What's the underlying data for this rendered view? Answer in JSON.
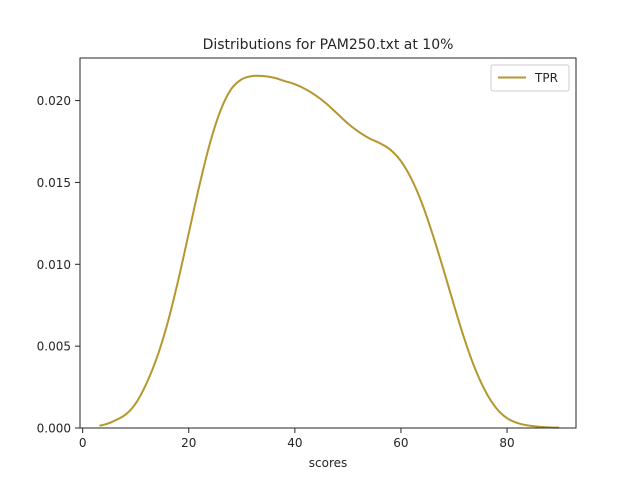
{
  "chart_data": {
    "type": "line",
    "title": "Distributions for PAM250.txt at 10%",
    "xlabel": "scores",
    "ylabel": "",
    "xlim": [
      -0.5,
      93
    ],
    "ylim": [
      0,
      0.0226
    ],
    "xticks": [
      0,
      20,
      40,
      60,
      80
    ],
    "yticks": [
      0.0,
      0.005,
      0.01,
      0.015,
      0.02
    ],
    "xtick_labels": [
      "0",
      "20",
      "40",
      "60",
      "80"
    ],
    "ytick_labels": [
      "0.000",
      "0.005",
      "0.010",
      "0.015",
      "0.020"
    ],
    "grid": false,
    "legend": {
      "position": "top-right",
      "entries": [
        "TPR"
      ]
    },
    "series": [
      {
        "name": "TPR",
        "color": "#b5972d",
        "x": [
          3.3,
          5,
          8,
          10,
          12,
          14,
          16,
          18,
          20,
          22,
          24,
          26,
          28,
          30,
          32,
          34,
          36,
          38,
          40,
          42,
          44,
          46,
          48,
          50,
          52,
          54,
          56,
          58,
          60,
          62,
          64,
          66,
          68,
          70,
          72,
          74,
          76,
          78,
          80,
          82,
          84,
          86,
          88,
          89.7
        ],
        "y": [
          0.00015,
          0.0003,
          0.0008,
          0.0015,
          0.0027,
          0.0043,
          0.0064,
          0.009,
          0.0119,
          0.0148,
          0.0174,
          0.0194,
          0.0207,
          0.0213,
          0.0215,
          0.0215,
          0.0214,
          0.0212,
          0.021,
          0.0207,
          0.0203,
          0.0198,
          0.0192,
          0.0186,
          0.0181,
          0.0177,
          0.0174,
          0.017,
          0.0163,
          0.0152,
          0.0137,
          0.0118,
          0.0097,
          0.0075,
          0.0054,
          0.0036,
          0.0022,
          0.0012,
          0.0006,
          0.0003,
          0.00015,
          8e-05,
          4e-05,
          2e-05
        ]
      }
    ]
  }
}
